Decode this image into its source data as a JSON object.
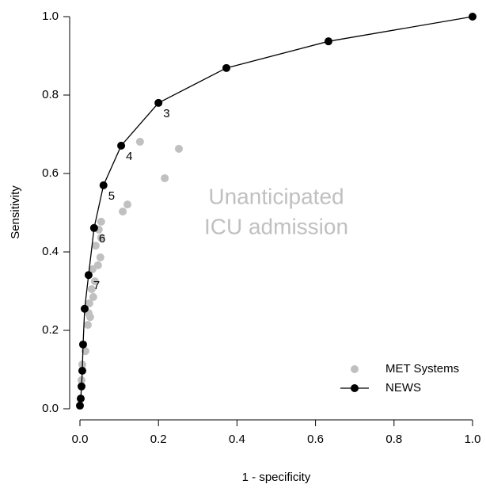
{
  "chart_data": {
    "type": "scatter",
    "xlabel": "1 - specificity",
    "ylabel": "Sensitivity",
    "annotation": [
      "Unanticipated",
      "ICU admission"
    ],
    "xlim": [
      0,
      1
    ],
    "ylim": [
      0,
      1
    ],
    "xticks": [
      {
        "value": 0,
        "label": "0.0"
      },
      0.2,
      0.4,
      0.6,
      0.8,
      {
        "value": 1,
        "label": "1.0"
      }
    ],
    "yticks": [
      {
        "value": 0,
        "label": "0.0"
      },
      0.2,
      0.4,
      0.6,
      0.8,
      {
        "value": 1,
        "label": "1.0"
      }
    ],
    "legend_position": "lower right",
    "series": [
      {
        "name": "MET Systems",
        "color": "#c0c0c0",
        "line": false,
        "x": [
          0.153,
          0.252,
          0.216,
          0.121,
          0.109,
          0.054,
          0.048,
          0.054,
          0.04,
          0.052,
          0.046,
          0.032,
          0.038,
          0.03,
          0.034,
          0.024,
          0.022,
          0.026,
          0.02,
          0.014,
          0.006,
          0.004
        ],
        "values": [
          0.681,
          0.663,
          0.588,
          0.521,
          0.503,
          0.477,
          0.457,
          0.436,
          0.416,
          0.386,
          0.366,
          0.356,
          0.325,
          0.305,
          0.285,
          0.269,
          0.244,
          0.234,
          0.214,
          0.147,
          0.113,
          0.073
        ]
      },
      {
        "name": "NEWS",
        "color": "#000000",
        "line": true,
        "x": [
          1.0,
          0.633,
          0.373,
          0.2,
          0.105,
          0.06,
          0.036,
          0.022,
          0.012,
          0.008,
          0.006,
          0.004,
          0.002,
          0
        ],
        "values": [
          1.0,
          0.937,
          0.869,
          0.78,
          0.671,
          0.57,
          0.461,
          0.341,
          0.255,
          0.164,
          0.097,
          0.057,
          0.026,
          0.008
        ],
        "point_labels": [
          null,
          null,
          null,
          "3",
          "4",
          "5",
          "6",
          "7",
          null,
          null,
          null,
          null,
          null,
          null
        ]
      }
    ]
  }
}
